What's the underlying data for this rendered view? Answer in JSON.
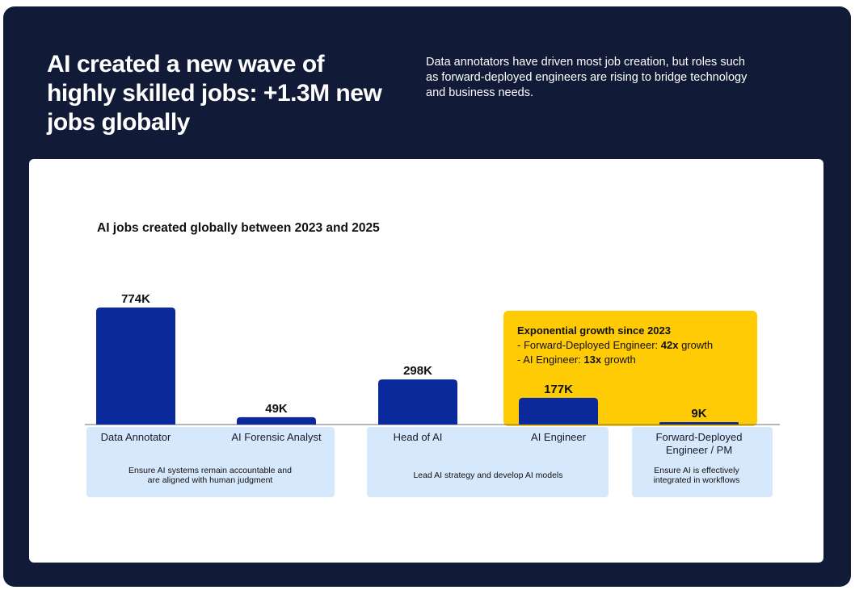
{
  "header": {
    "headline": "AI created a new wave of highly skilled jobs: +1.3M new jobs globally",
    "subtitle": "Data annotators have driven most job creation, but roles such as forward-deployed engineers are rising to bridge technology and business needs."
  },
  "highlight": {
    "title": "Exponential growth since 2023",
    "line1_prefix": "- Forward-Deployed Engineer: ",
    "line1_bold": "42x",
    "line1_suffix": " growth",
    "line2_prefix": "- AI Engineer: ",
    "line2_bold": "13x",
    "line2_suffix": " growth"
  },
  "groups": [
    {
      "description": "Ensure AI systems remain accountable and are aligned with human judgment"
    },
    {
      "description": "Lead AI strategy and develop AI models"
    },
    {
      "description": "Ensure AI is effectively integrated in workflows"
    }
  ],
  "colors": {
    "background": "#111a36",
    "bar": "#0a2a9c",
    "highlight": "#ffcb05",
    "group_box": "#d6e8fb"
  },
  "chart_data": {
    "type": "bar",
    "title": "AI jobs created globally between 2023 and 2025",
    "categories": [
      "Data Annotator",
      "AI Forensic Analyst",
      "Head of AI",
      "AI Engineer",
      "Forward-Deployed Engineer / PM"
    ],
    "values": [
      774,
      49,
      298,
      177,
      9
    ],
    "value_labels": [
      "774K",
      "49K",
      "298K",
      "177K",
      "9K"
    ],
    "unit": "K",
    "ylim": [
      0,
      774
    ],
    "grid": false
  }
}
